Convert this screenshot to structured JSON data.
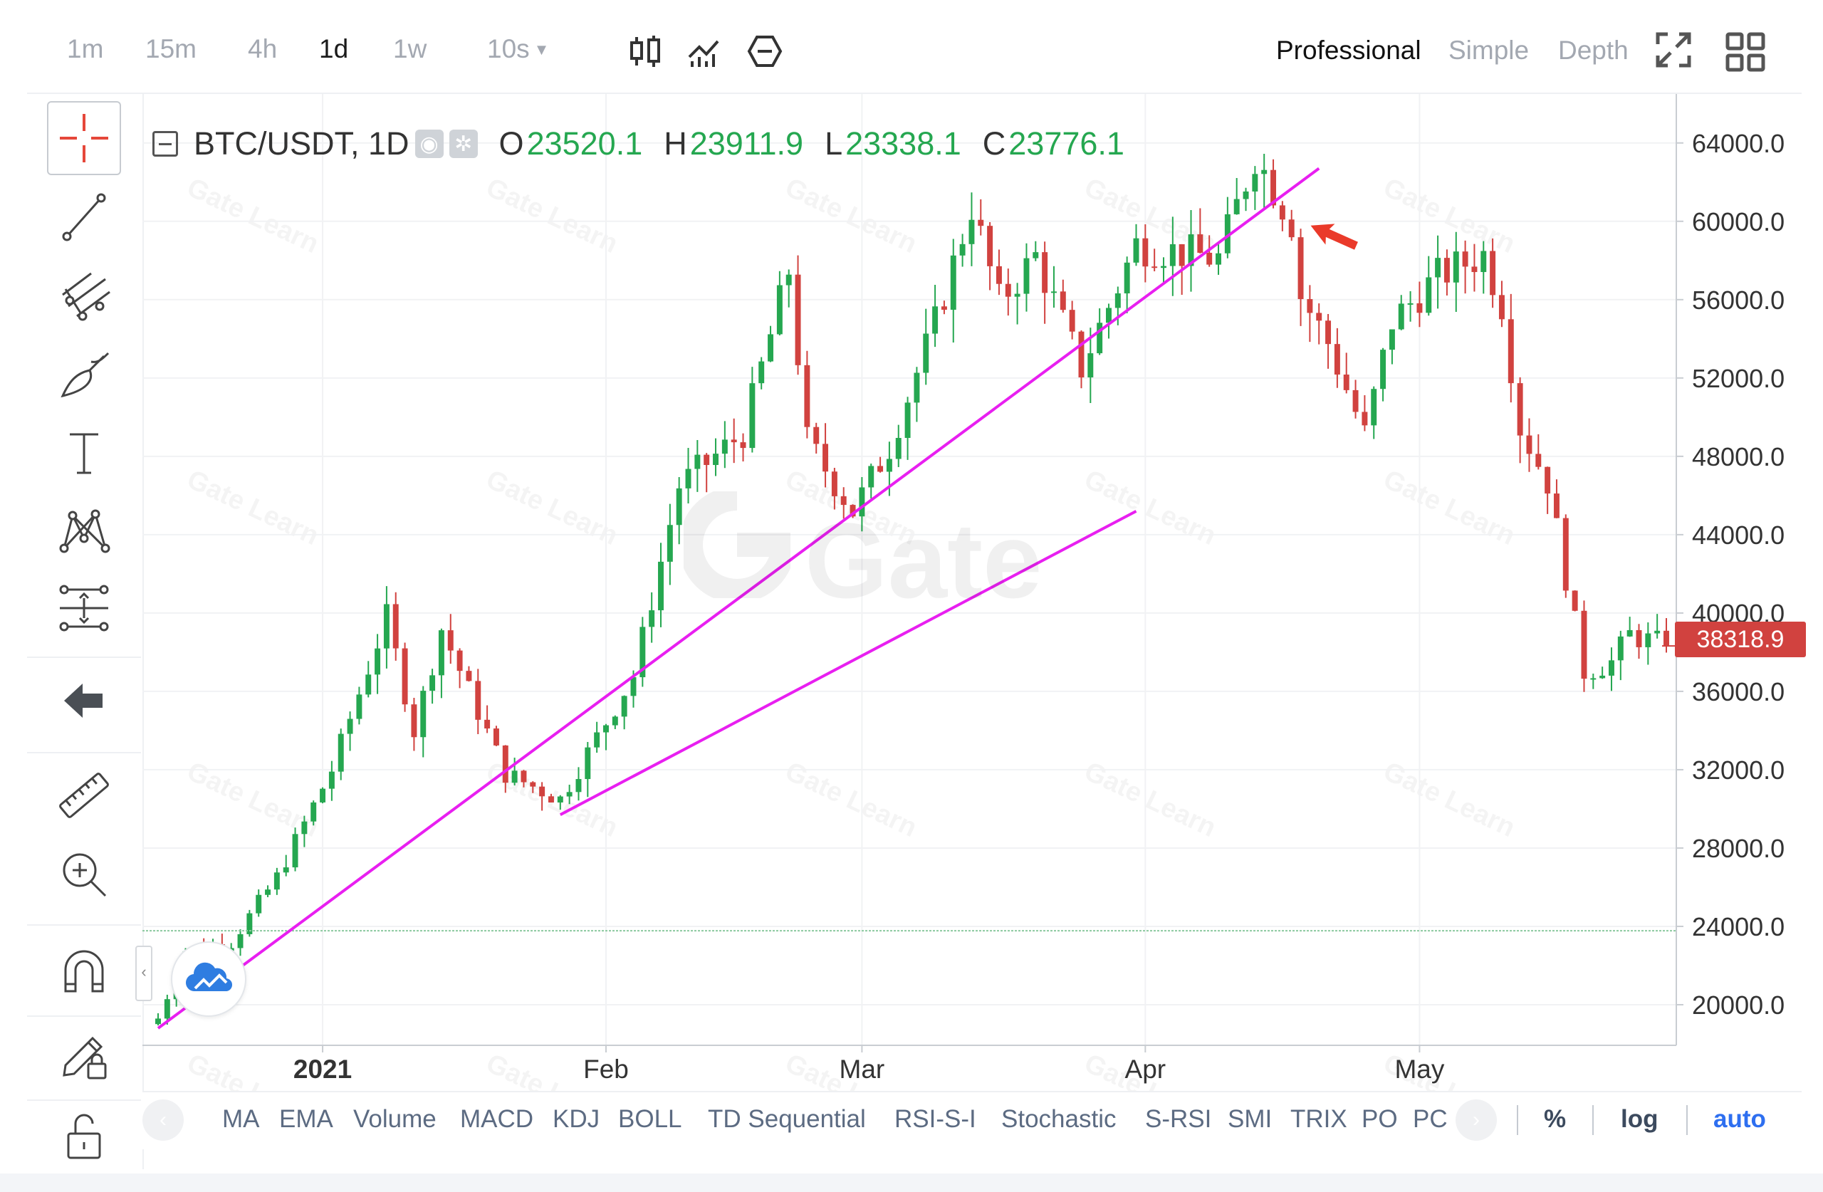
{
  "toolbar": {
    "timeframes": [
      {
        "label": "1m",
        "active": false
      },
      {
        "label": "15m",
        "active": false
      },
      {
        "label": "4h",
        "active": false
      },
      {
        "label": "1d",
        "active": true
      },
      {
        "label": "1w",
        "active": false
      },
      {
        "label": "10s",
        "active": false,
        "dropdown": true
      }
    ],
    "chart_icons": [
      "candlestick-chart-icon",
      "line-chart-icon",
      "settings-hexagon-icon"
    ],
    "modes": [
      {
        "label": "Professional",
        "active": true
      },
      {
        "label": "Simple",
        "active": false
      },
      {
        "label": "Depth",
        "active": false
      }
    ],
    "right_icons": [
      "fullscreen-icon",
      "layout-grid-icon"
    ]
  },
  "sidebar": {
    "tools": [
      "crosshair-icon",
      "trend-line-icon",
      "pitchfork-icon",
      "brush-icon",
      "text-icon",
      "pattern-icon",
      "fib-retracement-icon",
      "back-arrow-icon",
      "ruler-icon",
      "zoom-in-icon",
      "magnet-icon",
      "lock-drawing-icon",
      "unlock-icon"
    ]
  },
  "legend": {
    "symbol": "BTC/USDT, 1D",
    "open_label": "O",
    "open": "23520.1",
    "high_label": "H",
    "high": "23911.9",
    "low_label": "L",
    "low": "23338.1",
    "close_label": "C",
    "close": "23776.1"
  },
  "last_price_tag": "38318.9",
  "watermark": "Gate",
  "watermark_small": "Gate Learn",
  "indicators": [
    "MA",
    "EMA",
    "Volume",
    "MACD",
    "KDJ",
    "BOLL",
    "TD Sequential",
    "RSI-S-I",
    "Stochastic",
    "S-RSI",
    "SMI",
    "TRIX",
    "PO",
    "PC"
  ],
  "scale_options": [
    {
      "label": "%",
      "active": false
    },
    {
      "label": "log",
      "active": false
    },
    {
      "label": "auto",
      "active": true
    }
  ],
  "colors": {
    "up": "#25a750",
    "down": "#d1423f",
    "trendline": "#e81ff0",
    "arrow": "#ea3a2a",
    "active_option": "#2e6ff0"
  },
  "chart_data": {
    "type": "candlestick",
    "symbol": "BTC/USDT",
    "interval": "1D",
    "ylim": [
      18000,
      66500
    ],
    "yticks": [
      64000,
      60000,
      56000,
      52000,
      48000,
      44000,
      40000,
      36000,
      32000,
      28000,
      24000,
      20000
    ],
    "ytick_labels": [
      "64000.0",
      "60000.0",
      "56000.0",
      "52000.0",
      "48000.0",
      "44000.0",
      "40000.0",
      "36000.0",
      "32000.0",
      "28000.0",
      "24000.0",
      "20000.0"
    ],
    "start_date": "2020-12-14",
    "end_date": "2021-05-28",
    "x_labels": [
      {
        "label": "2021",
        "date": "2021-01-01",
        "bold": true
      },
      {
        "label": "Feb",
        "date": "2021-02-01",
        "bold": false
      },
      {
        "label": "Mar",
        "date": "2021-03-01",
        "bold": false
      },
      {
        "label": "Apr",
        "date": "2021-04-01",
        "bold": false
      },
      {
        "label": "May",
        "date": "2021-05-01",
        "bold": false
      }
    ],
    "grid": true,
    "horizontal_line": 23776.1,
    "close_anchors": [
      {
        "date": "2020-12-14",
        "close": 19300
      },
      {
        "date": "2020-12-17",
        "close": 22800
      },
      {
        "date": "2020-12-22",
        "close": 23200
      },
      {
        "date": "2020-12-27",
        "close": 26500
      },
      {
        "date": "2021-01-02",
        "close": 32000
      },
      {
        "date": "2021-01-08",
        "close": 39800
      },
      {
        "date": "2021-01-11",
        "close": 34000
      },
      {
        "date": "2021-01-14",
        "close": 39200
      },
      {
        "date": "2021-01-21",
        "close": 31800
      },
      {
        "date": "2021-01-27",
        "close": 30500
      },
      {
        "date": "2021-02-04",
        "close": 36800
      },
      {
        "date": "2021-02-09",
        "close": 46500
      },
      {
        "date": "2021-02-16",
        "close": 49200
      },
      {
        "date": "2021-02-21",
        "close": 57500
      },
      {
        "date": "2021-02-23",
        "close": 48800
      },
      {
        "date": "2021-02-28",
        "close": 45200
      },
      {
        "date": "2021-03-04",
        "close": 48500
      },
      {
        "date": "2021-03-09",
        "close": 54800
      },
      {
        "date": "2021-03-13",
        "close": 60800
      },
      {
        "date": "2021-03-16",
        "close": 55900
      },
      {
        "date": "2021-03-20",
        "close": 58200
      },
      {
        "date": "2021-03-25",
        "close": 52500
      },
      {
        "date": "2021-03-31",
        "close": 58800
      },
      {
        "date": "2021-04-05",
        "close": 58400
      },
      {
        "date": "2021-04-09",
        "close": 58100
      },
      {
        "date": "2021-04-13",
        "close": 63400
      },
      {
        "date": "2021-04-17",
        "close": 60000
      },
      {
        "date": "2021-04-18",
        "close": 56200
      },
      {
        "date": "2021-04-21",
        "close": 53800
      },
      {
        "date": "2021-04-25",
        "close": 49100
      },
      {
        "date": "2021-04-28",
        "close": 54900
      },
      {
        "date": "2021-05-03",
        "close": 57200
      },
      {
        "date": "2021-05-08",
        "close": 58300
      },
      {
        "date": "2021-05-10",
        "close": 55800
      },
      {
        "date": "2021-05-12",
        "close": 49500
      },
      {
        "date": "2021-05-15",
        "close": 46700
      },
      {
        "date": "2021-05-19",
        "close": 37000
      },
      {
        "date": "2021-05-22",
        "close": 37500
      },
      {
        "date": "2021-05-24",
        "close": 38900
      },
      {
        "date": "2021-05-28",
        "close": 38318.9
      }
    ],
    "annotations": [
      {
        "type": "trendline",
        "from": {
          "date": "2020-12-14",
          "price": 18800
        },
        "to": {
          "date": "2021-04-20",
          "price": 62700
        }
      },
      {
        "type": "trendline",
        "from": {
          "date": "2021-01-27",
          "price": 29700
        },
        "to": {
          "date": "2021-03-31",
          "price": 45200
        }
      },
      {
        "type": "arrow",
        "at": {
          "date": "2021-04-18",
          "price": 60000
        }
      }
    ]
  }
}
